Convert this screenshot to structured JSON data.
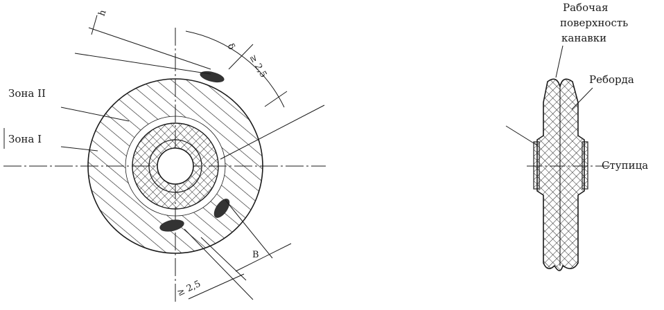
{
  "front_view": {
    "zone_2_label": "Зона II",
    "zone_1_label": "Зона I",
    "dim_h": "h",
    "dim_delta": "δ",
    "dim_top_roughness": "≥ 2,5",
    "dim_bottom_roughness": "≥ 2,5",
    "dim_b": "B"
  },
  "side_view": {
    "label_surface_line1": "Рабочая",
    "label_surface_line2": "поверхность",
    "label_surface_line3": "канавки",
    "label_flange": "Реборда",
    "label_hub": "Ступица"
  }
}
